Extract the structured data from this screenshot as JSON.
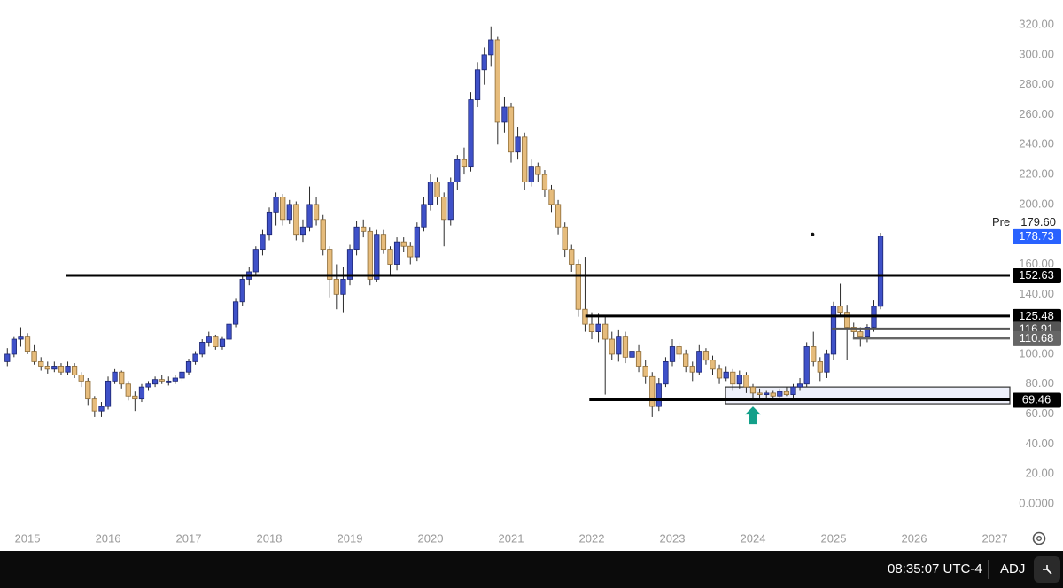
{
  "chart_data": {
    "type": "candlestick",
    "up_color": "#3f51c8",
    "down_color": "#e6bc7c",
    "xlim": [
      2014.659,
      2027.187
    ],
    "xticks": [
      2015,
      2016,
      2017,
      2018,
      2019,
      2020,
      2021,
      2022,
      2023,
      2024,
      2025,
      2026,
      2027
    ],
    "ylim": [
      -15.4,
      336.6
    ],
    "yticks": [
      {
        "value": 0,
        "label": "0.0000"
      },
      {
        "value": 20,
        "label": "20.00"
      },
      {
        "value": 40,
        "label": "40.00"
      },
      {
        "value": 60,
        "label": "60.00"
      },
      {
        "value": 80,
        "label": "80.00"
      },
      {
        "value": 100,
        "label": "100.00"
      },
      {
        "value": 120,
        "label": "120.00"
      },
      {
        "value": 140,
        "label": "140.00"
      },
      {
        "value": 160,
        "label": "160.00"
      },
      {
        "value": 180,
        "label": "180.00"
      },
      {
        "value": 200,
        "label": "200.00"
      },
      {
        "value": 220,
        "label": "220.00"
      },
      {
        "value": 240,
        "label": "240.00"
      },
      {
        "value": 260,
        "label": "260.00"
      },
      {
        "value": 280,
        "label": "280.00"
      },
      {
        "value": 300,
        "label": "300.00"
      },
      {
        "value": 320,
        "label": "320.00"
      }
    ],
    "x": [
      2014.75,
      2014.833,
      2014.917,
      2015.0,
      2015.083,
      2015.167,
      2015.25,
      2015.333,
      2015.417,
      2015.5,
      2015.583,
      2015.667,
      2015.75,
      2015.833,
      2015.917,
      2016.0,
      2016.083,
      2016.167,
      2016.25,
      2016.333,
      2016.417,
      2016.5,
      2016.583,
      2016.667,
      2016.75,
      2016.833,
      2016.917,
      2017.0,
      2017.083,
      2017.167,
      2017.25,
      2017.333,
      2017.417,
      2017.5,
      2017.583,
      2017.667,
      2017.75,
      2017.833,
      2017.917,
      2018.0,
      2018.083,
      2018.167,
      2018.25,
      2018.333,
      2018.417,
      2018.5,
      2018.583,
      2018.667,
      2018.75,
      2018.833,
      2018.917,
      2019.0,
      2019.083,
      2019.167,
      2019.25,
      2019.333,
      2019.417,
      2019.5,
      2019.583,
      2019.667,
      2019.75,
      2019.833,
      2019.917,
      2020.0,
      2020.083,
      2020.167,
      2020.25,
      2020.333,
      2020.417,
      2020.5,
      2020.583,
      2020.667,
      2020.75,
      2020.833,
      2020.917,
      2021.0,
      2021.083,
      2021.167,
      2021.25,
      2021.333,
      2021.417,
      2021.5,
      2021.583,
      2021.667,
      2021.75,
      2021.833,
      2021.917,
      2022.0,
      2022.083,
      2022.167,
      2022.25,
      2022.333,
      2022.417,
      2022.5,
      2022.583,
      2022.667,
      2022.75,
      2022.833,
      2022.917,
      2023.0,
      2023.083,
      2023.167,
      2023.25,
      2023.333,
      2023.417,
      2023.5,
      2023.583,
      2023.667,
      2023.75,
      2023.833,
      2023.917,
      2024.0,
      2024.083,
      2024.167,
      2024.25,
      2024.333,
      2024.417,
      2024.5,
      2024.583,
      2024.667,
      2024.75,
      2024.833,
      2024.917,
      2025.0,
      2025.083,
      2025.167,
      2025.25,
      2025.333,
      2025.417,
      2025.5,
      2025.583
    ],
    "ohlc": [
      [
        95,
        104,
        92,
        100
      ],
      [
        100,
        112,
        98,
        110
      ],
      [
        110,
        118,
        105,
        112
      ],
      [
        112,
        114,
        100,
        102
      ],
      [
        102,
        106,
        93,
        95
      ],
      [
        95,
        98,
        89,
        92
      ],
      [
        92,
        95,
        87,
        90
      ],
      [
        90,
        95,
        88,
        92
      ],
      [
        92,
        94,
        86,
        88
      ],
      [
        88,
        95,
        86,
        92
      ],
      [
        92,
        94,
        84,
        86
      ],
      [
        86,
        88,
        78,
        82
      ],
      [
        82,
        84,
        66,
        70
      ],
      [
        70,
        72,
        58,
        62
      ],
      [
        62,
        68,
        58,
        65
      ],
      [
        65,
        85,
        63,
        82
      ],
      [
        82,
        90,
        80,
        88
      ],
      [
        88,
        89,
        77,
        80
      ],
      [
        80,
        82,
        69,
        72
      ],
      [
        72,
        75,
        62,
        70
      ],
      [
        70,
        80,
        68,
        78
      ],
      [
        78,
        82,
        76,
        80
      ],
      [
        80,
        85,
        78,
        83
      ],
      [
        83,
        86,
        80,
        82
      ],
      [
        82,
        85,
        79,
        82
      ],
      [
        82,
        86,
        80,
        84
      ],
      [
        84,
        90,
        82,
        88
      ],
      [
        88,
        97,
        86,
        95
      ],
      [
        95,
        102,
        93,
        100
      ],
      [
        100,
        110,
        98,
        108
      ],
      [
        108,
        115,
        105,
        112
      ],
      [
        112,
        113,
        103,
        105
      ],
      [
        105,
        112,
        103,
        110
      ],
      [
        110,
        122,
        108,
        120
      ],
      [
        120,
        137,
        118,
        135
      ],
      [
        135,
        152,
        132,
        150
      ],
      [
        150,
        158,
        146,
        155
      ],
      [
        155,
        172,
        153,
        170
      ],
      [
        170,
        183,
        166,
        180
      ],
      [
        180,
        198,
        176,
        195
      ],
      [
        195,
        208,
        186,
        205
      ],
      [
        205,
        207,
        186,
        190
      ],
      [
        190,
        203,
        187,
        200
      ],
      [
        200,
        202,
        176,
        180
      ],
      [
        180,
        190,
        175,
        185
      ],
      [
        185,
        212,
        182,
        200
      ],
      [
        200,
        205,
        186,
        190
      ],
      [
        190,
        193,
        166,
        170
      ],
      [
        170,
        172,
        138,
        150
      ],
      [
        150,
        160,
        130,
        140
      ],
      [
        140,
        158,
        128,
        150
      ],
      [
        150,
        173,
        146,
        170
      ],
      [
        170,
        189,
        166,
        185
      ],
      [
        185,
        190,
        178,
        182
      ],
      [
        182,
        185,
        146,
        150
      ],
      [
        150,
        183,
        148,
        180
      ],
      [
        180,
        183,
        167,
        170
      ],
      [
        170,
        172,
        152,
        160
      ],
      [
        160,
        178,
        156,
        175
      ],
      [
        175,
        178,
        168,
        172
      ],
      [
        172,
        175,
        160,
        165
      ],
      [
        165,
        188,
        162,
        185
      ],
      [
        185,
        205,
        182,
        200
      ],
      [
        200,
        220,
        196,
        215
      ],
      [
        215,
        218,
        200,
        205
      ],
      [
        205,
        208,
        172,
        190
      ],
      [
        190,
        218,
        186,
        215
      ],
      [
        215,
        233,
        210,
        230
      ],
      [
        230,
        238,
        220,
        225
      ],
      [
        225,
        275,
        222,
        270
      ],
      [
        270,
        295,
        265,
        290
      ],
      [
        290,
        305,
        280,
        300
      ],
      [
        300,
        319,
        292,
        310
      ],
      [
        310,
        312,
        240,
        255
      ],
      [
        255,
        272,
        248,
        265
      ],
      [
        265,
        268,
        228,
        235
      ],
      [
        235,
        252,
        230,
        245
      ],
      [
        245,
        248,
        210,
        215
      ],
      [
        215,
        230,
        212,
        225
      ],
      [
        225,
        228,
        215,
        220
      ],
      [
        220,
        223,
        205,
        210
      ],
      [
        210,
        213,
        195,
        200
      ],
      [
        200,
        203,
        180,
        185
      ],
      [
        185,
        188,
        165,
        170
      ],
      [
        170,
        173,
        155,
        160
      ],
      [
        160,
        163,
        125,
        130
      ],
      [
        130,
        165,
        115,
        120
      ],
      [
        120,
        128,
        110,
        115
      ],
      [
        115,
        127,
        108,
        120
      ],
      [
        120,
        126,
        73,
        110
      ],
      [
        110,
        115,
        96,
        100
      ],
      [
        100,
        116,
        95,
        112
      ],
      [
        112,
        115,
        94,
        98
      ],
      [
        98,
        115,
        96,
        102
      ],
      [
        102,
        106,
        88,
        92
      ],
      [
        92,
        96,
        80,
        85
      ],
      [
        85,
        88,
        58,
        65
      ],
      [
        65,
        84,
        62,
        80
      ],
      [
        80,
        98,
        78,
        95
      ],
      [
        95,
        110,
        92,
        105
      ],
      [
        105,
        108,
        97,
        100
      ],
      [
        100,
        103,
        88,
        92
      ],
      [
        92,
        95,
        82,
        88
      ],
      [
        88,
        106,
        86,
        102
      ],
      [
        102,
        104,
        93,
        96
      ],
      [
        96,
        99,
        86,
        90
      ],
      [
        90,
        93,
        80,
        84
      ],
      [
        84,
        92,
        82,
        88
      ],
      [
        88,
        90,
        76,
        80
      ],
      [
        80,
        89,
        77,
        86
      ],
      [
        86,
        88,
        74,
        78
      ],
      [
        78,
        80,
        70,
        74
      ],
      [
        74,
        77,
        70,
        73
      ],
      [
        73,
        76,
        71,
        74
      ],
      [
        74,
        76,
        70,
        72
      ],
      [
        72,
        77,
        70,
        75
      ],
      [
        75,
        78,
        72,
        73
      ],
      [
        73,
        80,
        71,
        78
      ],
      [
        78,
        84,
        76,
        80
      ],
      [
        80,
        108,
        78,
        105
      ],
      [
        105,
        115,
        92,
        95
      ],
      [
        95,
        98,
        82,
        88
      ],
      [
        88,
        103,
        84,
        100
      ],
      [
        100,
        135,
        96,
        132
      ],
      [
        132,
        147,
        125,
        128
      ],
      [
        128,
        133,
        96,
        118
      ],
      [
        118,
        121,
        110,
        115
      ],
      [
        115,
        118,
        105,
        112
      ],
      [
        112,
        120,
        108,
        118
      ],
      [
        118,
        136,
        115,
        132
      ],
      [
        132,
        181,
        130,
        178.73
      ]
    ],
    "levels": [
      {
        "value": 152.63,
        "x_start": 2015.48,
        "color": "#000000"
      },
      {
        "value": 125.48,
        "x_start": 2021.92,
        "color": "#000000"
      },
      {
        "value": 116.91,
        "x_start": 2024.98,
        "color": "#555555"
      },
      {
        "value": 110.68,
        "x_start": 2025.24,
        "color": "#666666"
      },
      {
        "value": 69.46,
        "x_start": 2021.97,
        "color": "#000000"
      }
    ],
    "zone": {
      "x_start": 2023.66,
      "low": 66.8,
      "high": 78
    },
    "arrow": {
      "x": 2024.0,
      "y": 65,
      "color": "#13a08a"
    },
    "dot": {
      "x": 2024.74,
      "y": 180
    },
    "last_price": 178.73,
    "pre": {
      "label": "Pre",
      "price": {
        "value": 179.6,
        "label": "179.60"
      }
    }
  },
  "status_bar": {
    "time": "08:35:07 UTC-4",
    "adjust": "ADJ"
  }
}
